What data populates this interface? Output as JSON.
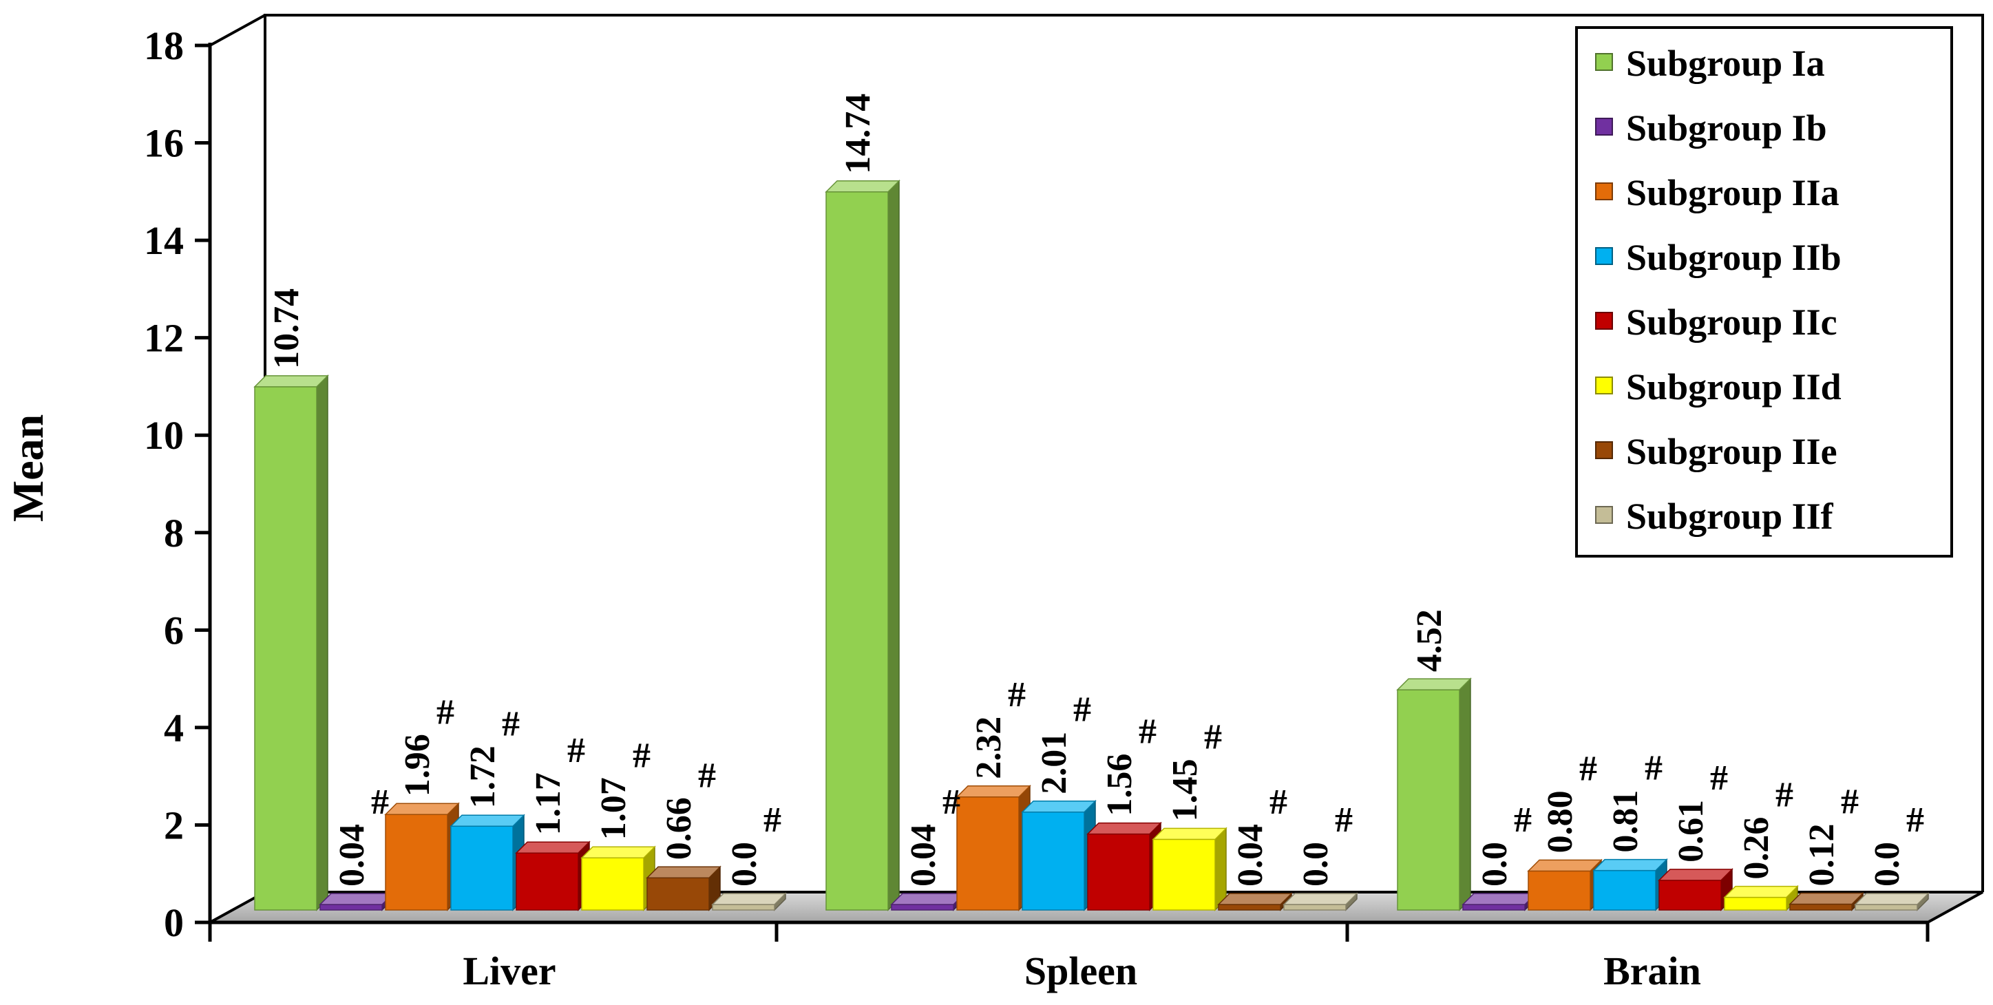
{
  "chart_data": {
    "type": "bar",
    "ylabel": "Mean",
    "ylim": [
      0,
      18
    ],
    "yticks": [
      0,
      2,
      4,
      6,
      8,
      10,
      12,
      14,
      16,
      18
    ],
    "categories": [
      "Liver",
      "Spleen",
      "Brain"
    ],
    "legend_position": "top-right",
    "series": [
      {
        "name": "Subgroup Ia",
        "color": "#92D050",
        "values": [
          10.74,
          14.74,
          4.52
        ],
        "labels": [
          "10.74",
          "14.74",
          "4.52"
        ],
        "marks": [
          "",
          "",
          ""
        ]
      },
      {
        "name": "Subgroup Ib",
        "color": "#7030A0",
        "values": [
          0.04,
          0.04,
          0.0
        ],
        "labels": [
          "0.04",
          "0.04",
          "0.0"
        ],
        "marks": [
          "#",
          "#",
          "#"
        ]
      },
      {
        "name": "Subgroup IIa",
        "color": "#E36C09",
        "values": [
          1.96,
          2.32,
          0.8
        ],
        "labels": [
          "1.96",
          "2.32",
          "0.80"
        ],
        "marks": [
          "#",
          "#",
          "#"
        ]
      },
      {
        "name": "Subgroup IIb",
        "color": "#00B0F0",
        "values": [
          1.72,
          2.01,
          0.81
        ],
        "labels": [
          "1.72",
          "2.01",
          "0.81"
        ],
        "marks": [
          "#",
          "#",
          "#"
        ]
      },
      {
        "name": "Subgroup IIc",
        "color": "#C00000",
        "values": [
          1.17,
          1.56,
          0.61
        ],
        "labels": [
          "1.17",
          "1.56",
          "0.61"
        ],
        "marks": [
          "#",
          "#",
          "#"
        ]
      },
      {
        "name": "Subgroup IId",
        "color": "#FFFF00",
        "values": [
          1.07,
          1.45,
          0.26
        ],
        "labels": [
          "1.07",
          "1.45",
          "0.26"
        ],
        "marks": [
          "#",
          "#",
          "#"
        ]
      },
      {
        "name": "Subgroup IIe",
        "color": "#984807",
        "values": [
          0.66,
          0.04,
          0.12
        ],
        "labels": [
          "0.66",
          "0.04",
          "0.12"
        ],
        "marks": [
          "#",
          "#",
          "#"
        ]
      },
      {
        "name": "Subgroup IIf",
        "color": "#C4BD97",
        "values": [
          0.0,
          0.0,
          0.0
        ],
        "labels": [
          "0.0",
          "0.0",
          "0.0"
        ],
        "marks": [
          "#",
          "#",
          "#"
        ]
      }
    ]
  }
}
